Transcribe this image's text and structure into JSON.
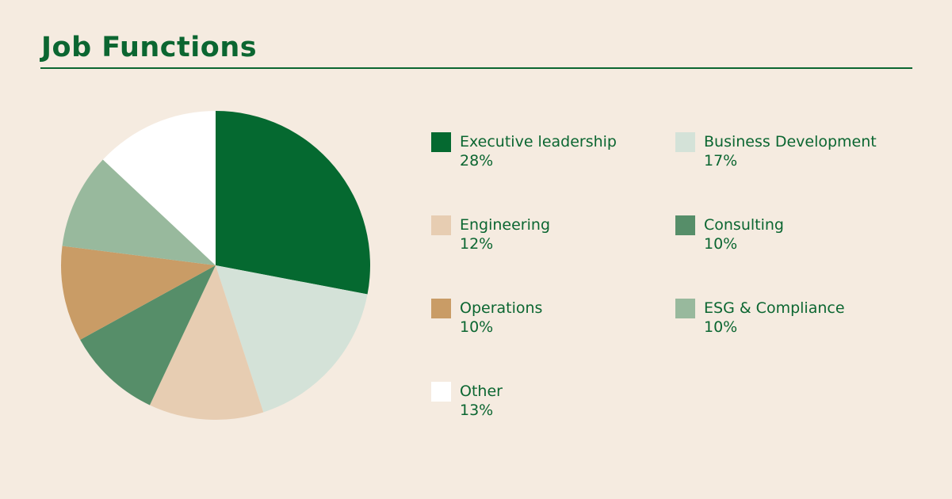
{
  "chart_data": {
    "type": "pie",
    "title": "Job Functions",
    "categories": [
      "Executive leadership",
      "Business Development",
      "Engineering",
      "Consulting",
      "Operations",
      "ESG & Compliance",
      "Other"
    ],
    "values": [
      28,
      17,
      12,
      10,
      10,
      10,
      13
    ],
    "value_labels": [
      "28%",
      "17%",
      "12%",
      "10%",
      "10%",
      "10%",
      "13%"
    ],
    "colors": [
      "#056930",
      "#d4e2d8",
      "#e7cdb2",
      "#568e69",
      "#c99c66",
      "#98b99d",
      "#ffffff"
    ],
    "legend_order": [
      0,
      1,
      2,
      3,
      4,
      5,
      6
    ],
    "legend_placement": "right",
    "start_angle": "top, clockwise"
  }
}
